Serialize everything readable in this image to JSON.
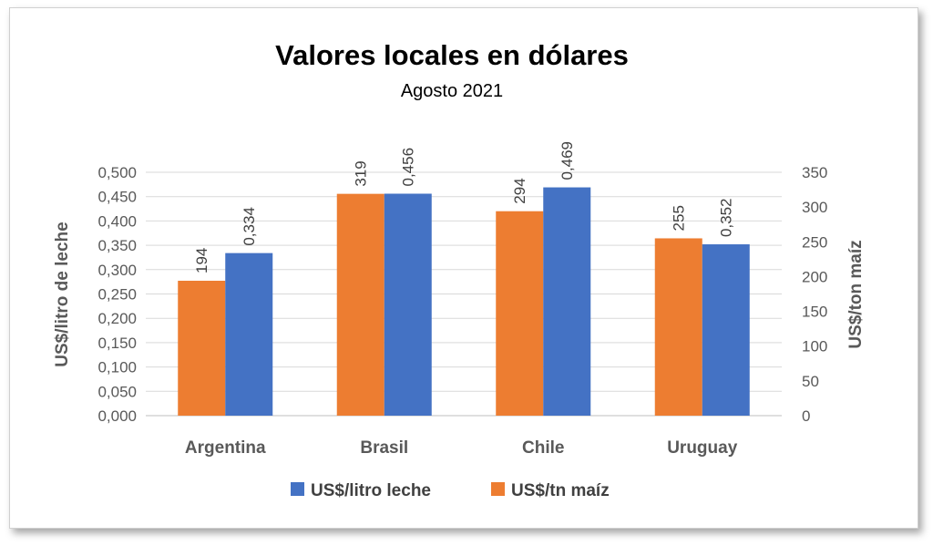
{
  "chart_data": {
    "type": "bar",
    "title": "Valores locales en dólares",
    "subtitle": "Agosto 2021",
    "categories": [
      "Argentina",
      "Brasil",
      "Chile",
      "Uruguay"
    ],
    "series": [
      {
        "name": "US$/tn maíz",
        "axis": "right",
        "color": "#ED7D31",
        "values": [
          194,
          319,
          294,
          255
        ],
        "labels": [
          "194",
          "319",
          "294",
          "255"
        ]
      },
      {
        "name": "US$/litro leche",
        "axis": "left",
        "color": "#4472C4",
        "values": [
          0.334,
          0.456,
          0.469,
          0.352
        ],
        "labels": [
          "0,334",
          "0,456",
          "0,469",
          "0,352"
        ]
      }
    ],
    "y_left": {
      "label": "US$/litro de leche",
      "range": [
        0,
        0.5
      ],
      "ticks": [
        "0,000",
        "0,050",
        "0,100",
        "0,150",
        "0,200",
        "0,250",
        "0,300",
        "0,350",
        "0,400",
        "0,450",
        "0,500"
      ]
    },
    "y_right": {
      "label": "US$/ton maíz",
      "range": [
        0,
        350
      ],
      "ticks": [
        "0",
        "50",
        "100",
        "150",
        "200",
        "250",
        "300",
        "350"
      ]
    },
    "legend": {
      "position": "bottom",
      "entries": [
        {
          "name": "US$/litro leche",
          "color": "#4472C4"
        },
        {
          "name": "US$/tn maíz",
          "color": "#ED7D31"
        }
      ]
    },
    "grid": true
  }
}
